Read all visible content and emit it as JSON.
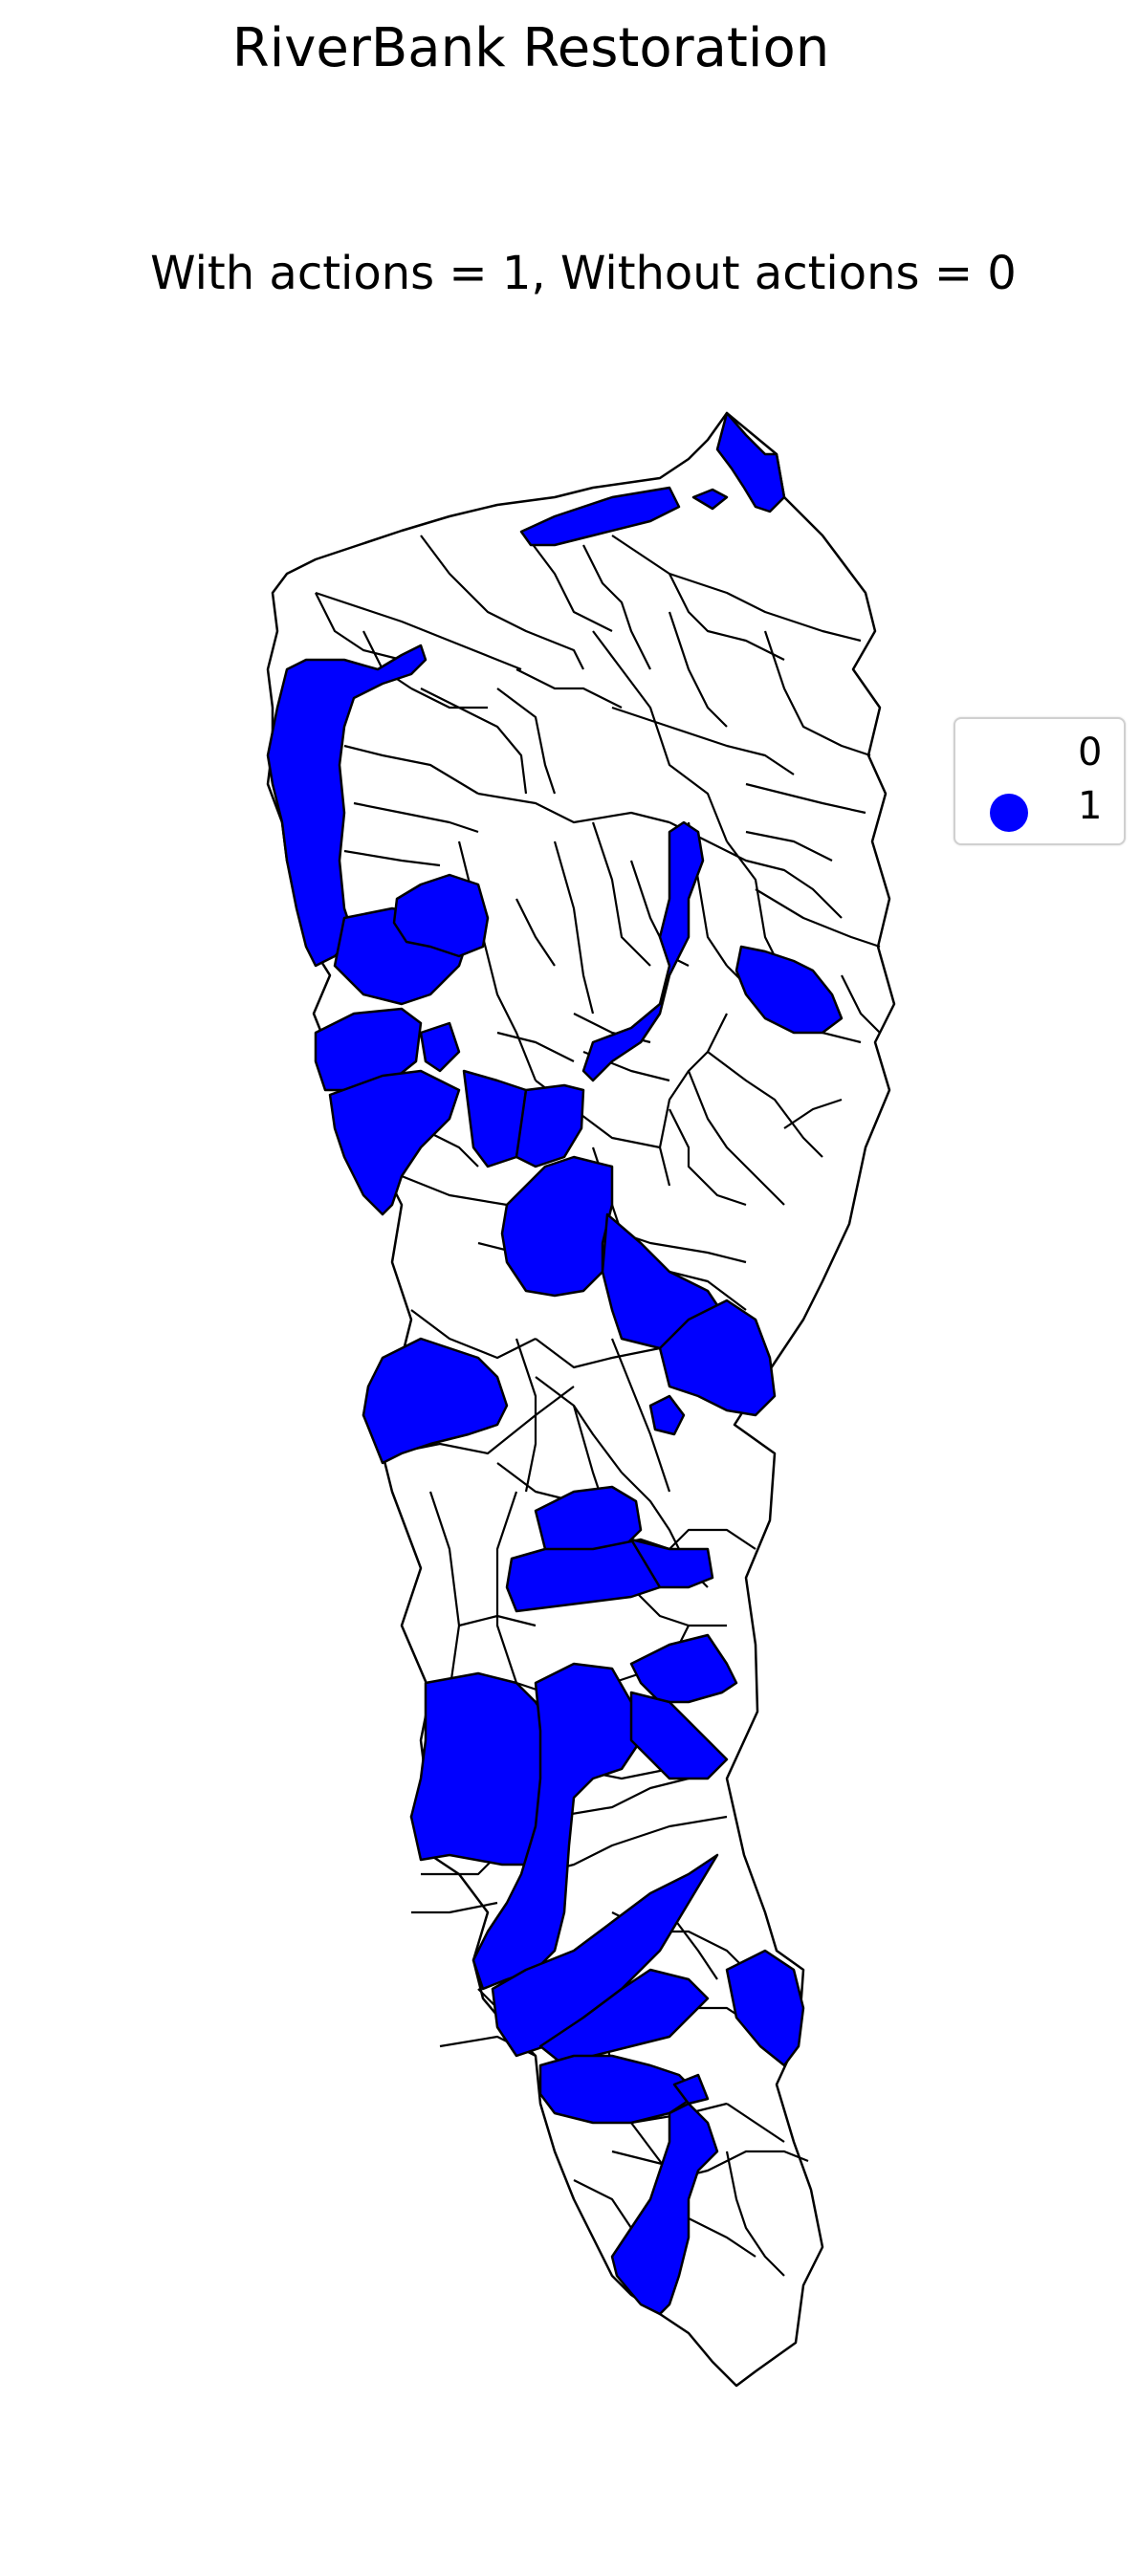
{
  "title": "RiverBank Restoration",
  "subtitle": "With actions = 1, Without actions = 0",
  "colors": {
    "action": "#0000ff",
    "no_action": "#ffffff",
    "outline": "#000000"
  },
  "legend": {
    "placement": "right",
    "items": [
      {
        "label": "0",
        "value": 0,
        "color": "#ffffff"
      },
      {
        "label": "1",
        "value": 1,
        "color": "#0000ff"
      }
    ]
  },
  "chart_data": {
    "type": "choropleth",
    "title": "RiverBank Restoration",
    "subtitle": "With actions = 1, Without actions = 0",
    "categories": [
      0,
      1
    ],
    "category_colors": {
      "0": "#ffffff",
      "1": "#0000ff"
    },
    "highlighted_value": 1
  }
}
